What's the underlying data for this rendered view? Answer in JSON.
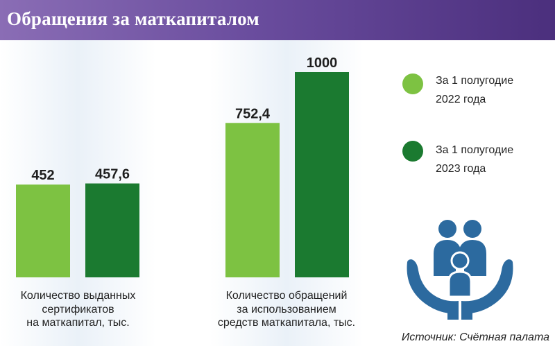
{
  "header": {
    "title": "Обращения за маткапиталом"
  },
  "colors": {
    "series_2022": "#7dc242",
    "series_2023": "#1b7a30",
    "icon": "#2c6a9f"
  },
  "chart_data": [
    {
      "type": "bar",
      "categories": [
        "Количество выданных сертификатов на маткапитал, тыс."
      ],
      "category_lines": [
        "Количество выданных",
        "сертификатов",
        "на маткапитал, тыс."
      ],
      "series": [
        {
          "name": "За 1 полугодие 2022 года",
          "values": [
            452
          ],
          "label": "452"
        },
        {
          "name": "За 1 полугодие 2023 года",
          "values": [
            457.6
          ],
          "label": "457,6"
        }
      ],
      "ylim": [
        0,
        1000
      ]
    },
    {
      "type": "bar",
      "categories": [
        "Количество обращений за использованием средств маткапитала, тыс."
      ],
      "category_lines": [
        "Количество обращений",
        "за использованием",
        "средств маткапитала, тыс."
      ],
      "series": [
        {
          "name": "За 1 полугодие 2022 года",
          "values": [
            752.4
          ],
          "label": "752,4"
        },
        {
          "name": "За 1 полугодие 2023 года",
          "values": [
            1000
          ],
          "label": "1000"
        }
      ],
      "ylim": [
        0,
        1000
      ]
    }
  ],
  "legend": {
    "placement": "right",
    "items": [
      {
        "line1": "За 1 полугодие",
        "line2": "2022 года"
      },
      {
        "line1": "За 1 полугодие",
        "line2": "2023 года"
      }
    ]
  },
  "icon": {
    "name": "family-hands-icon"
  },
  "source": "Источник: Счётная палата"
}
